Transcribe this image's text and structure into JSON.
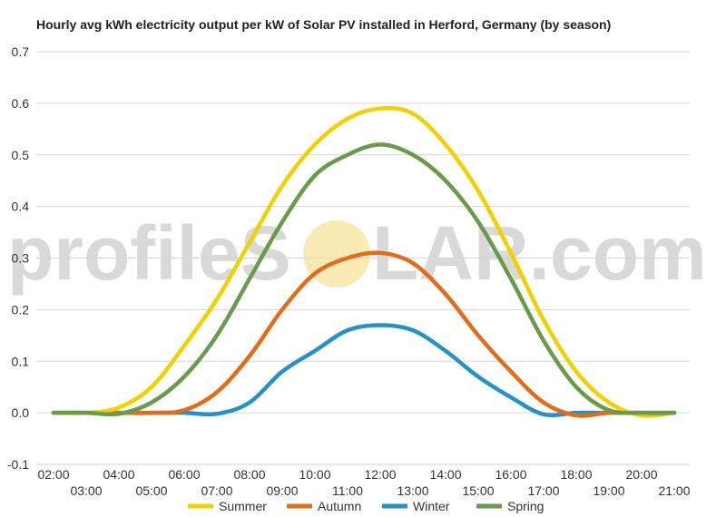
{
  "chart_data": {
    "type": "line",
    "title": "Hourly avg kWh electricity output per kW of Solar PV installed in Herford, Germany (by season)",
    "xlabel": "",
    "ylabel": "",
    "ylim": [
      -0.1,
      0.7
    ],
    "yticks": [
      -0.1,
      0.0,
      0.1,
      0.2,
      0.3,
      0.4,
      0.5,
      0.6,
      0.7
    ],
    "ytick_labels": [
      "-0.1",
      "0.0",
      "0.1",
      "0.2",
      "0.3",
      "0.4",
      "0.5",
      "0.6",
      "0.7"
    ],
    "x": [
      "02:00",
      "03:00",
      "04:00",
      "05:00",
      "06:00",
      "07:00",
      "08:00",
      "09:00",
      "10:00",
      "11:00",
      "12:00",
      "13:00",
      "14:00",
      "15:00",
      "16:00",
      "17:00",
      "18:00",
      "19:00",
      "20:00",
      "21:00"
    ],
    "grid": true,
    "legend_position": "bottom",
    "series": [
      {
        "name": "Summer",
        "color": "#f2d100",
        "values": [
          0.0,
          0.0,
          0.01,
          0.05,
          0.13,
          0.22,
          0.33,
          0.44,
          0.52,
          0.57,
          0.59,
          0.58,
          0.52,
          0.43,
          0.31,
          0.18,
          0.08,
          0.02,
          -0.005,
          0.0
        ]
      },
      {
        "name": "Autumn",
        "color": "#e36c1a",
        "values": [
          0.0,
          0.0,
          0.0,
          0.0,
          0.005,
          0.04,
          0.11,
          0.2,
          0.27,
          0.3,
          0.31,
          0.29,
          0.23,
          0.15,
          0.08,
          0.02,
          -0.005,
          0.0,
          0.0,
          0.0
        ]
      },
      {
        "name": "Winter",
        "color": "#2592c7",
        "values": [
          0.0,
          0.0,
          0.0,
          0.0,
          0.0,
          -0.002,
          0.02,
          0.08,
          0.12,
          0.16,
          0.17,
          0.16,
          0.12,
          0.07,
          0.03,
          -0.003,
          0.0,
          0.0,
          0.0,
          0.0
        ]
      },
      {
        "name": "Spring",
        "color": "#6a9a4c",
        "values": [
          0.0,
          0.0,
          -0.002,
          0.02,
          0.07,
          0.15,
          0.26,
          0.37,
          0.46,
          0.5,
          0.52,
          0.5,
          0.45,
          0.37,
          0.26,
          0.14,
          0.05,
          0.005,
          0.0,
          0.0
        ]
      }
    ]
  },
  "watermark": {
    "left_text": "profileS",
    "right_text": "LAR.com",
    "sun_color": "#f8e39a"
  }
}
